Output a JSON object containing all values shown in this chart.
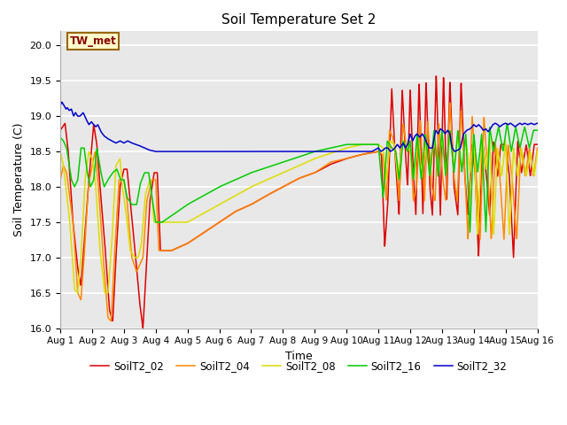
{
  "title": "Soil Temperature Set 2",
  "xlabel": "Time",
  "ylabel": "Soil Temperature (C)",
  "ylim": [
    16.0,
    20.2
  ],
  "background_color": "#e8e8e8",
  "annotation_text": "TW_met",
  "annotation_bg": "#ffffcc",
  "annotation_border": "#996600",
  "annotation_text_color": "#880000",
  "series_colors": {
    "SoilT2_02": "#dd0000",
    "SoilT2_04": "#ff8800",
    "SoilT2_08": "#dddd00",
    "SoilT2_16": "#00cc00",
    "SoilT2_32": "#0000cc"
  },
  "legend_labels": [
    "SoilT2_02",
    "SoilT2_04",
    "SoilT2_08",
    "SoilT2_16",
    "SoilT2_32"
  ],
  "xtick_labels": [
    "Aug 1",
    "Aug 2",
    "Aug 3",
    "Aug 4",
    "Aug 5",
    "Aug 6",
    "Aug 7",
    "Aug 8",
    "Aug 9",
    "Aug 10",
    "Aug 11",
    "Aug 12",
    "Aug 13",
    "Aug 14",
    "Aug 15",
    "Aug 16"
  ],
  "ytick_vals": [
    16.0,
    16.5,
    17.0,
    17.5,
    18.0,
    18.5,
    19.0,
    19.5,
    20.0
  ]
}
